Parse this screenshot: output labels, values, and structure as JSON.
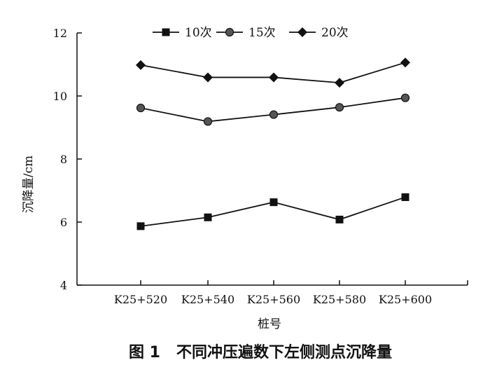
{
  "chart_data": {
    "type": "line",
    "xlabel": "桩号",
    "ylabel": "沉降量/cm",
    "categories": [
      "K25+520",
      "K25+540",
      "K25+560",
      "K25+580",
      "K25+600"
    ],
    "ylim": [
      4,
      12
    ],
    "yticks": [
      "4",
      "6",
      "8",
      "10",
      "12"
    ],
    "grid": false,
    "legend_position": "top",
    "series": [
      {
        "name": "10次",
        "marker": "square",
        "values": [
          5.87,
          6.15,
          6.63,
          6.08,
          6.79
        ]
      },
      {
        "name": "15次",
        "marker": "circle",
        "values": [
          9.62,
          9.19,
          9.41,
          9.64,
          9.94
        ]
      },
      {
        "name": "20次",
        "marker": "diamond",
        "values": [
          10.98,
          10.59,
          10.59,
          10.42,
          11.06
        ]
      }
    ]
  },
  "caption": "图 1   不同冲压遍数下左侧测点沉降量",
  "colors": {
    "line": "#111111",
    "marker_circle": "#555555",
    "background": "#ffffff"
  }
}
